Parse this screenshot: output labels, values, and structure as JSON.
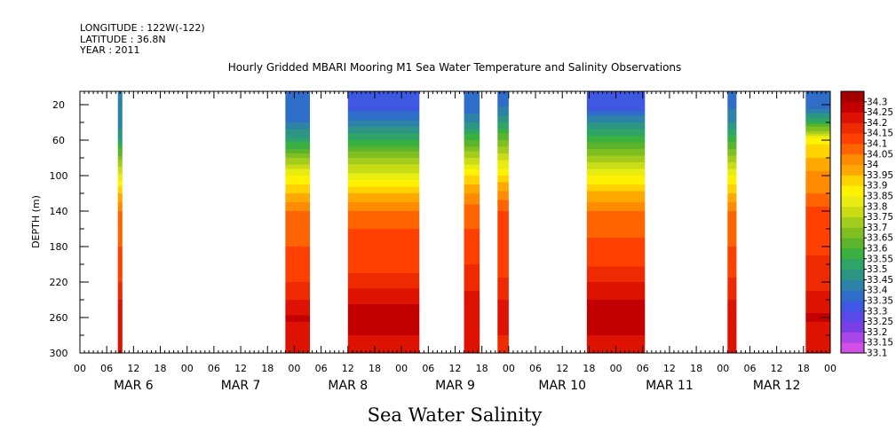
{
  "header": {
    "longitude": "LONGITUDE : 122W(-122)",
    "latitude": "LATITUDE : 36.8N",
    "year": "YEAR : 2011"
  },
  "chart_data": {
    "type": "heatmap",
    "title": "Hourly Gridded MBARI Mooring M1 Sea Water Temperature and Salinity Observations",
    "xlabel": "Sea Water Salinity",
    "ylabel": "DEPTH (m)",
    "y_ticks": [
      20,
      60,
      100,
      140,
      180,
      220,
      260,
      300
    ],
    "ylim": [
      300,
      5
    ],
    "x_range_hours": [
      0,
      168
    ],
    "x_hour_ticks": [
      "00",
      "06",
      "12",
      "18",
      "00",
      "06",
      "12",
      "18",
      "00",
      "06",
      "12",
      "18",
      "00",
      "06",
      "12",
      "18",
      "00",
      "06",
      "12",
      "18",
      "00",
      "06",
      "12",
      "18",
      "00",
      "06",
      "12",
      "18",
      "00"
    ],
    "day_labels": [
      "MAR  6",
      "MAR  7",
      "MAR  8",
      "MAR  9",
      "MAR 10",
      "MAR 11",
      "MAR 12"
    ],
    "colorbar": {
      "levels": [
        33.1,
        33.15,
        33.2,
        33.25,
        33.3,
        33.35,
        33.4,
        33.45,
        33.5,
        33.55,
        33.6,
        33.65,
        33.7,
        33.75,
        33.8,
        33.85,
        33.9,
        33.95,
        34,
        34.05,
        34.1,
        34.15,
        34.2,
        34.25,
        34.3
      ],
      "labels": [
        "33.1",
        "33.15",
        "33.2",
        "33.25",
        "33.3",
        "33.35",
        "33.4",
        "33.45",
        "33.5",
        "33.55",
        "33.6",
        "33.65",
        "33.7",
        "33.75",
        "33.8",
        "33.85",
        "33.9",
        "33.95",
        "34",
        "34.05",
        "34.1",
        "34.15",
        "34.2",
        "34.25",
        "34.3"
      ],
      "colors": [
        "#d24fe6",
        "#a845e6",
        "#7a3ee6",
        "#5a48e8",
        "#3f58e2",
        "#2f6ec8",
        "#2d82a8",
        "#2c9584",
        "#2ea566",
        "#39b03f",
        "#5bb42c",
        "#7fbf22",
        "#a4cc1c",
        "#c9dc16",
        "#e8ec10",
        "#fff200",
        "#ffd200",
        "#ffa800",
        "#ff8c00",
        "#ff6400",
        "#ff4000",
        "#ee2a00",
        "#dd1200",
        "#c20000",
        "#a50000"
      ]
    },
    "profile_depths_m": [
      20,
      40,
      60,
      80,
      100,
      120,
      140,
      160,
      180,
      200,
      220,
      240,
      260,
      280,
      300
    ],
    "segments": [
      {
        "t_start": 8.5,
        "t_end": 9.5,
        "profile": [
          33.4,
          33.42,
          33.5,
          33.68,
          33.82,
          33.95,
          34.05,
          34.08,
          34.1,
          34.12,
          34.15,
          34.2,
          34.25,
          34.22,
          34.2
        ]
      },
      {
        "t_start": 46.0,
        "t_end": 51.5,
        "profile": [
          33.38,
          33.4,
          33.52,
          33.7,
          33.85,
          33.95,
          34.05,
          34.08,
          34.1,
          34.1,
          34.15,
          34.2,
          34.26,
          34.22,
          34.2
        ]
      },
      {
        "t_start": 60.0,
        "t_end": 76.0,
        "profile": [
          33.3,
          33.42,
          33.55,
          33.7,
          33.82,
          33.95,
          34.05,
          34.1,
          34.12,
          34.12,
          34.18,
          34.24,
          34.28,
          34.25,
          34.22
        ]
      },
      {
        "t_start": 86.0,
        "t_end": 89.5,
        "profile": [
          33.35,
          33.45,
          33.6,
          33.75,
          33.9,
          34.0,
          34.08,
          34.1,
          34.12,
          34.15,
          34.18,
          34.22,
          34.24,
          34.22,
          34.2
        ]
      },
      {
        "t_start": 93.5,
        "t_end": 96.0,
        "profile": [
          33.38,
          33.5,
          33.65,
          33.78,
          33.9,
          34.02,
          34.1,
          34.1,
          34.12,
          34.12,
          34.16,
          34.2,
          34.22,
          34.2,
          34.18
        ]
      },
      {
        "t_start": 113.5,
        "t_end": 126.5,
        "profile": [
          33.3,
          33.45,
          33.58,
          33.72,
          33.85,
          33.96,
          34.05,
          34.08,
          34.12,
          34.14,
          34.2,
          34.25,
          34.28,
          34.25,
          34.2
        ]
      },
      {
        "t_start": 145.0,
        "t_end": 147.0,
        "profile": [
          33.38,
          33.45,
          33.58,
          33.72,
          33.85,
          33.95,
          34.05,
          34.08,
          34.1,
          34.12,
          34.16,
          34.2,
          34.25,
          34.22,
          34.2
        ]
      },
      {
        "t_start": 162.5,
        "t_end": 168.0,
        "profile": [
          33.35,
          33.55,
          33.88,
          33.95,
          34.02,
          34.05,
          34.12,
          34.12,
          34.14,
          34.16,
          34.18,
          34.22,
          34.26,
          34.22,
          34.2
        ]
      }
    ]
  }
}
